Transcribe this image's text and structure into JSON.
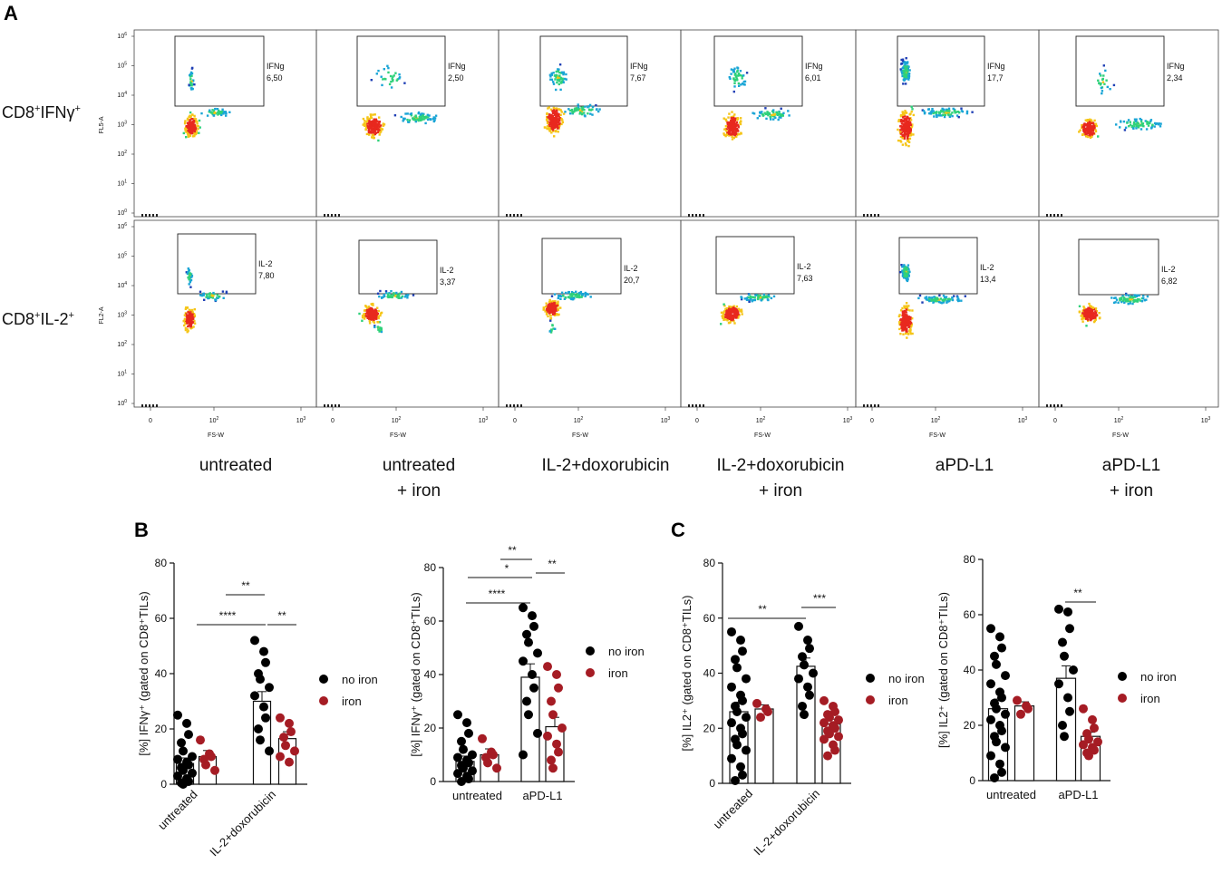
{
  "panel_labels": {
    "a": "A",
    "b": "B",
    "c": "C"
  },
  "flow": {
    "row_labels": [
      {
        "text": "CD8",
        "sup1": "+",
        "mid": "IFNγ",
        "sup2": "+"
      },
      {
        "text": "CD8",
        "sup1": "+",
        "mid": "IL-2",
        "sup2": "+"
      }
    ],
    "y_axis_labels": [
      "FL5-A",
      "FL2-A"
    ],
    "x_axis_label": "FS-W",
    "x_ticks": [
      "0",
      "10",
      "10"
    ],
    "y_ticks": [
      "10",
      "10",
      "10",
      "10",
      "10",
      "10",
      "10"
    ],
    "y_tick_exps": [
      "6",
      "5",
      "4",
      "3",
      "2",
      "1",
      "0"
    ],
    "x_tick_exps": [
      "",
      "2",
      "3"
    ],
    "conditions": [
      {
        "line1": "untreated",
        "line2": ""
      },
      {
        "line1": "untreated",
        "line2": "+ iron"
      },
      {
        "line1": "IL-2+doxorubicin",
        "line2": ""
      },
      {
        "line1": "IL-2+doxorubicin",
        "line2": "+ iron"
      },
      {
        "line1": "aPD-L1",
        "line2": ""
      },
      {
        "line1": "aPD-L1",
        "line2": "+ iron"
      }
    ],
    "gates": [
      [
        {
          "name": "IFNg",
          "value": "6,50"
        },
        {
          "name": "IFNg",
          "value": "2,50"
        },
        {
          "name": "IFNg",
          "value": "7,67"
        },
        {
          "name": "IFNg",
          "value": "6,01"
        },
        {
          "name": "IFNg",
          "value": "17,7"
        },
        {
          "name": "IFNg",
          "value": "2,34"
        }
      ],
      [
        {
          "name": "IL-2",
          "value": "7,80"
        },
        {
          "name": "IL-2",
          "value": "3,37"
        },
        {
          "name": "IL-2",
          "value": "20,7"
        },
        {
          "name": "IL-2",
          "value": "7,63"
        },
        {
          "name": "IL-2",
          "value": "13,4"
        },
        {
          "name": "IL-2",
          "value": "6,82"
        }
      ]
    ]
  },
  "legend": {
    "no_iron": "no iron",
    "iron": "iron"
  },
  "colors": {
    "no_iron": "#000000",
    "iron": "#a51c24",
    "hot": "#e8281e",
    "warm": "#f5c518",
    "mid": "#2fd17a",
    "cool": "#19a5d6",
    "cold": "#1f3fb5"
  },
  "chart_data": [
    {
      "type": "bar",
      "panel": "B",
      "ylabel": "[%] IFNγ⁺ (gated on CD8⁺TILs)",
      "ylim": [
        0,
        80
      ],
      "yticks": [
        "0",
        "20",
        "40",
        "60",
        "80"
      ],
      "categories": [
        "untreated",
        "IL-2+doxorubicin"
      ],
      "tick_rotate": true,
      "series": [
        {
          "name": "no iron",
          "values": [
            7.5,
            30.0
          ],
          "errors": [
            2.0,
            3.5
          ],
          "points": [
            [
              25,
              22,
              18,
              15,
              12,
              10,
              9,
              8,
              7,
              6,
              5,
              4,
              3,
              2,
              1,
              0.5,
              0
            ],
            [
              52,
              48,
              44,
              40,
              38,
              35,
              32,
              28,
              24,
              20,
              16,
              12
            ]
          ]
        },
        {
          "name": "iron",
          "values": [
            10.0,
            16.5
          ],
          "errors": [
            2.2,
            2.5
          ],
          "points": [
            [
              16,
              11,
              10,
              9,
              7,
              5
            ],
            [
              24,
              22,
              19,
              17,
              14,
              12,
              10,
              8
            ]
          ]
        }
      ],
      "significance": [
        {
          "label": "**",
          "level": 69,
          "from": "g1-a",
          "to": "g1-b"
        },
        {
          "label": "****",
          "level": 58,
          "from": "g0-a",
          "to": "g1-a"
        },
        {
          "label": "**",
          "level": 58,
          "from": "g1-a",
          "to": "g1-b",
          "short": true
        }
      ]
    },
    {
      "type": "bar",
      "panel": "B2",
      "ylabel": "[%] IFNγ⁺ (gated on CD8⁺TILs)",
      "ylim": [
        0,
        80
      ],
      "yticks": [
        "0",
        "20",
        "40",
        "60",
        "80"
      ],
      "categories": [
        "untreated",
        "aPD-L1"
      ],
      "tick_rotate": false,
      "series": [
        {
          "name": "no iron",
          "values": [
            7.5,
            39.0
          ],
          "errors": [
            2.0,
            5.0
          ],
          "points": [
            [
              25,
              22,
              18,
              15,
              12,
              10,
              9,
              8,
              7,
              6,
              5,
              4,
              3,
              2,
              1,
              0
            ],
            [
              65,
              62,
              58,
              55,
              52,
              48,
              45,
              40,
              35,
              30,
              25,
              18,
              10
            ]
          ]
        },
        {
          "name": "iron",
          "values": [
            10.0,
            20.5
          ],
          "errors": [
            2.2,
            3.5
          ],
          "points": [
            [
              16,
              11,
              10,
              9,
              7,
              5
            ],
            [
              43,
              40,
              35,
              30,
              25,
              20,
              17,
              14,
              11,
              8,
              5
            ]
          ]
        }
      ],
      "significance": [
        {
          "label": "**",
          "level": 78,
          "top": true
        },
        {
          "label": "*",
          "level": 72
        },
        {
          "label": "**",
          "level": 72,
          "right": true
        },
        {
          "label": "****",
          "level": 66
        }
      ]
    },
    {
      "type": "bar",
      "panel": "C",
      "ylabel": "[%] IL2⁺ (gated on CD8⁺TILs)",
      "ylim": [
        0,
        80
      ],
      "yticks": [
        "0",
        "20",
        "40",
        "60",
        "80"
      ],
      "categories": [
        "untreated",
        "IL-2+doxorubicin"
      ],
      "tick_rotate": true,
      "series": [
        {
          "name": "no iron",
          "values": [
            26.0,
            42.5
          ],
          "errors": [
            3.5,
            3.0
          ],
          "points": [
            [
              55,
              52,
              48,
              45,
              42,
              38,
              35,
              32,
              30,
              28,
              26,
              24,
              22,
              20,
              18,
              16,
              14,
              12,
              9,
              6,
              3,
              1
            ],
            [
              57,
              52,
              49,
              46,
              43,
              40,
              38,
              35,
              32,
              28,
              25
            ]
          ]
        },
        {
          "name": "iron",
          "values": [
            27.0,
            21.5
          ],
          "errors": [
            1.5,
            1.8
          ],
          "points": [
            [
              29,
              27,
              26,
              24
            ],
            [
              30,
              28,
              26,
              25,
              24,
              23,
              22,
              21,
              20,
              19,
              18,
              17,
              16,
              14,
              12,
              10
            ]
          ]
        }
      ],
      "significance": [
        {
          "label": "**",
          "level": 60
        },
        {
          "label": "***",
          "level": 64
        }
      ]
    },
    {
      "type": "bar",
      "panel": "C2",
      "ylabel": "[%] IL2⁺ (gated on CD8⁺TILs)",
      "ylim": [
        0,
        80
      ],
      "yticks": [
        "0",
        "20",
        "40",
        "60",
        "80"
      ],
      "categories": [
        "untreated",
        "aPD-L1"
      ],
      "tick_rotate": false,
      "series": [
        {
          "name": "no iron",
          "values": [
            26.0,
            37.0
          ],
          "errors": [
            3.5,
            4.5
          ],
          "points": [
            [
              55,
              52,
              48,
              45,
              42,
              38,
              35,
              32,
              30,
              28,
              26,
              24,
              22,
              20,
              18,
              16,
              14,
              12,
              9,
              6,
              3,
              1
            ],
            [
              62,
              61,
              55,
              50,
              45,
              40,
              35,
              30,
              25,
              20,
              16
            ]
          ]
        },
        {
          "name": "iron",
          "values": [
            27.0,
            16.0
          ],
          "errors": [
            1.5,
            1.5
          ],
          "points": [
            [
              29,
              27,
              26,
              24
            ],
            [
              26,
              22,
              19,
              17,
              15,
              14,
              13,
              12,
              11,
              10,
              9
            ]
          ]
        }
      ],
      "significance": [
        {
          "label": "**",
          "level": 64
        }
      ]
    }
  ]
}
